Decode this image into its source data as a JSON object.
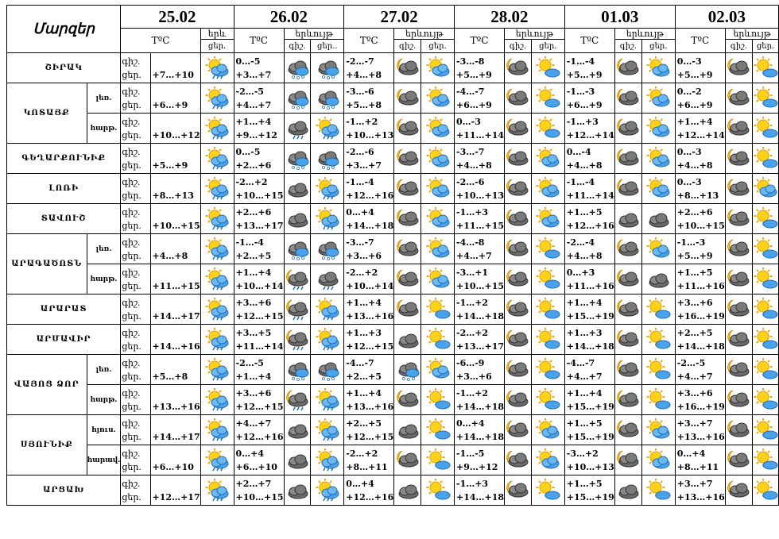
{
  "header": {
    "corner_label": "Մարզեր",
    "dates": [
      "25.02",
      "26.02",
      "27.02",
      "28.02",
      "01.03",
      "02.03"
    ],
    "temp_label": "TºC",
    "phen_label_full": "երևույթ",
    "phen_label_short": "երև",
    "night_label": "գիշ.",
    "day_label": "ցեր.",
    "day_label_trunc": "ցեր.."
  },
  "rows": [
    {
      "region": "ՇԻՐԱԿ",
      "sub": "",
      "night": "գիշ.",
      "day": "ցեր.",
      "d0": "+7…+10",
      "d1": "0…-5\n+3…+7",
      "d2": "-2…-7\n+4…+8",
      "d3": "-3…-8\n+5…+9",
      "d4": "-1…-4\n+5…+9",
      "d5": "0…-3\n+5…+9",
      "icons": [
        [
          "sunny_rain",
          "sunny_rain"
        ],
        [
          "cloud_snow",
          "cloud_snow"
        ],
        [
          "night_cloud",
          "sunny_cloud"
        ],
        [
          "night_cloud",
          "sunny"
        ],
        [
          "night_cloud",
          "sunny_cloud"
        ],
        [
          "night_cloud",
          "sunny"
        ]
      ]
    },
    {
      "region": "ԿՈՏԱՅՔ",
      "sub": "լեռ.",
      "night": "գիշ.",
      "day": "ցեր.",
      "d0": "+6…+9",
      "d1": "-2…-5\n+4…+7",
      "d2": "-3…-6\n+5…+8",
      "d3": "-4…-7\n+6…+9",
      "d4": "-1…-3\n+6…+9",
      "d5": "0…-2\n+6…+9",
      "icons": [
        [
          "sunny_rain",
          "sunny_rain"
        ],
        [
          "cloud_snow",
          "cloud_snow"
        ],
        [
          "night_cloud",
          "sunny_cloud"
        ],
        [
          "night_cloud",
          "sunny"
        ],
        [
          "night_cloud",
          "sunny_cloud"
        ],
        [
          "night_cloud",
          "sunny"
        ]
      ]
    },
    {
      "region": "",
      "sub": "հարթ.",
      "night": "գիշ.",
      "day": "ցեր.",
      "d0": "+10…+12",
      "d1": "+1…+4\n+9…+12",
      "d2": "-1…+2\n+10…+13",
      "d3": "0…-3\n+11…+14",
      "d4": "-1…+3\n+12…+14",
      "d5": "+1…+4\n+12…+14",
      "icons": [
        [
          "sunny_rain",
          "sunny_rain"
        ],
        [
          "cloud_rain",
          "sunny_rain"
        ],
        [
          "night_cloud",
          "sunny_cloud"
        ],
        [
          "night_cloud",
          "sunny"
        ],
        [
          "night_cloud",
          "sunny_cloud"
        ],
        [
          "night_cloud",
          "sunny"
        ]
      ]
    },
    {
      "region": "ԳԵՂԱՐՔՈՒՆԻՔ",
      "sub": "",
      "night": "գիշ.",
      "day": "ցեր.",
      "d0": "+5…+9",
      "d1": "0…-5\n+2…+6",
      "d2": "-2…-6\n+3…+7",
      "d3": "-3…-7\n+4…+8",
      "d4": "0…-4\n+4…+8",
      "d5": "0…-3\n+4…+8",
      "icons": [
        [
          "sunny_rain",
          "sunny_rain"
        ],
        [
          "cloud_snow",
          "cloud_snow"
        ],
        [
          "night_cloud",
          "sunny_cloud"
        ],
        [
          "night_cloud",
          "sunny_cloud"
        ],
        [
          "night_cloud",
          "sunny_cloud"
        ],
        [
          "night_cloud",
          "sunny"
        ]
      ]
    },
    {
      "region": "ԼՈՌԻ",
      "sub": "",
      "night": "գիշ.",
      "day": "ցեր.",
      "d0": "+8…+13",
      "d1": "-2…+2\n+10…+15",
      "d2": "-1…-4\n+12…+16",
      "d3": "-2…-6\n+10…+13",
      "d4": "-1…-4\n+11…+14",
      "d5": "0…-3\n+8…+13",
      "icons": [
        [
          "sunny_rain",
          "sunny_rain"
        ],
        [
          "cloud",
          "sunny_rain"
        ],
        [
          "night_cloud",
          "sunny_cloud"
        ],
        [
          "night_cloud",
          "sunny_cloud"
        ],
        [
          "night_cloud",
          "sunny_cloud"
        ],
        [
          "night_cloud",
          "sunny_cloud"
        ]
      ]
    },
    {
      "region": "ՏԱՎՈՒՇ",
      "sub": "",
      "night": "գիշ.",
      "day": "ցեր.",
      "d0": "+10…+15",
      "d1": "+2…+6\n+13…+17",
      "d2": "0…+4\n+14…+18",
      "d3": "-1…+3\n+11…+15",
      "d4": "+1…+5\n+12…+16",
      "d5": "+2…+6\n+10…+15",
      "icons": [
        [
          "sunny_rain",
          "sunny_rain"
        ],
        [
          "cloud",
          "sunny_rain"
        ],
        [
          "night_cloud",
          "sunny_cloud"
        ],
        [
          "night_cloud",
          "sunny_cloud"
        ],
        [
          "cloud",
          "cloud"
        ],
        [
          "night_cloud",
          "sunny"
        ]
      ]
    },
    {
      "region": "ԱՐԱԳԱԾՈՏՆ",
      "sub": "լեռ.",
      "night": "գիշ.",
      "day": "ցեր.",
      "d0": "+4…+8",
      "d1": "-1…-4\n+2…+5",
      "d2": "-3…-7\n+3…+6",
      "d3": "-4…-8\n+4…+7",
      "d4": "-2…-4\n+4…+8",
      "d5": "-1…-3\n+5…+9",
      "icons": [
        [
          "sunny_rain",
          "sunny_rain"
        ],
        [
          "cloud_snow",
          "cloud_snow"
        ],
        [
          "night_cloud",
          "sunny_cloud"
        ],
        [
          "night_cloud",
          "sunny"
        ],
        [
          "night_cloud",
          "sunny_cloud"
        ],
        [
          "night_cloud",
          "sunny"
        ]
      ]
    },
    {
      "region": "",
      "sub": "հարթ.",
      "night": "գիշ.",
      "day": "ցեր.",
      "d0": "+11…+15",
      "d1": "+1…+4\n+10…+14",
      "d2": "-2…+2\n+10…+14",
      "d3": "-3…+1\n+10…+15",
      "d4": "0…+3\n+11…+16",
      "d5": "+1…+5\n+11…+16",
      "icons": [
        [
          "sunny_rain",
          "sunny_rain"
        ],
        [
          "night_rain",
          "cloud_rain"
        ],
        [
          "night_cloud",
          "sunny_cloud"
        ],
        [
          "night_cloud",
          "sunny"
        ],
        [
          "night_cloud",
          "cloud"
        ],
        [
          "night_cloud",
          "sunny"
        ]
      ]
    },
    {
      "region": "ԱՐԱՐԱՏ",
      "sub": "",
      "night": "գիշ.",
      "day": "ցեր.",
      "d0": "+14…+17",
      "d1": "+3…+6\n+12…+15",
      "d2": "+1…+4\n+13…+16",
      "d3": "-1…+2\n+14…+18",
      "d4": "+1…+4\n+15…+19",
      "d5": "+3…+6\n+16…+19",
      "icons": [
        [
          "sunny_rain",
          "sunny_rain"
        ],
        [
          "night_rain",
          "sunny_rain"
        ],
        [
          "night_cloud",
          "sunny"
        ],
        [
          "night_cloud",
          "sunny"
        ],
        [
          "night_cloud",
          "sunny"
        ],
        [
          "night_cloud",
          "sunny"
        ]
      ]
    },
    {
      "region": "ԱՐՄԱՎԻՐ",
      "sub": "",
      "night": "գիշ.",
      "day": "ցեր.",
      "d0": "+14…+16",
      "d1": "+3…+5\n+11…+14",
      "d2": "+1…+3\n+12…+15",
      "d3": "-2…+2\n+13…+17",
      "d4": "+1…+3\n+14…+18",
      "d5": "+2…+5\n+14…+18",
      "icons": [
        [
          "sunny_rain",
          "sunny_rain"
        ],
        [
          "night_rain",
          "sunny_rain"
        ],
        [
          "cloud",
          "sunny"
        ],
        [
          "night_cloud",
          "sunny"
        ],
        [
          "night_cloud",
          "sunny"
        ],
        [
          "night_cloud",
          "sunny"
        ]
      ]
    },
    {
      "region": "ՎԱՅՈՑ ՁՈՐ",
      "sub": "լեռ.",
      "night": "գիշ.",
      "day": "ցեր.",
      "d0": "+5…+8",
      "d1": "-2…-5\n+1…+4",
      "d2": "-4…-7\n+2…+5",
      "d3": "-6…-9\n+3…+6",
      "d4": "-4…-7\n+4…+7",
      "d5": "-2…-5\n+4…+7",
      "icons": [
        [
          "sunny_rain",
          "sunny_rain"
        ],
        [
          "cloud_snow",
          "cloud_snow"
        ],
        [
          "cloud_snow",
          "sunny_cloud"
        ],
        [
          "night_cloud",
          "sunny"
        ],
        [
          "night_cloud",
          "sunny"
        ],
        [
          "night_cloud",
          "sunny"
        ]
      ]
    },
    {
      "region": "",
      "sub": "հարթ.",
      "night": "գիշ.",
      "day": "ցեր.",
      "d0": "+13…+16",
      "d1": "+3…+6\n+12…+15",
      "d2": "+1…+4\n+13…+16",
      "d3": "-1…+2\n+14…+18",
      "d4": "+1…+4\n+15…+19",
      "d5": "+3…+6\n+16…+19",
      "icons": [
        [
          "sunny_rain",
          "sunny_rain"
        ],
        [
          "night_rain",
          "sunny_rain"
        ],
        [
          "night_cloud",
          "sunny"
        ],
        [
          "night_cloud",
          "sunny"
        ],
        [
          "night_cloud",
          "sunny"
        ],
        [
          "night_cloud",
          "sunny"
        ]
      ]
    },
    {
      "region": "ՍՅՈՒՆԻՔ",
      "sub": "հյուս.",
      "night": "գիշ.",
      "day": "ցեր.",
      "d0": "+14…+17",
      "d1": "+4…+7\n+12…+16",
      "d2": "+2…+5\n+12…+15",
      "d3": "0…+4\n+14…+18",
      "d4": "+1…+5\n+15…+19",
      "d5": "+3…+7\n+13…+16",
      "icons": [
        [
          "sunny_rain",
          "sunny_rain"
        ],
        [
          "cloud",
          "sunny_rain"
        ],
        [
          "cloud",
          "sunny"
        ],
        [
          "night_cloud",
          "sunny_cloud"
        ],
        [
          "night_cloud",
          "sunny_cloud"
        ],
        [
          "night_cloud",
          "sunny"
        ]
      ]
    },
    {
      "region": "",
      "sub": "հարավ.",
      "night": "գիշ.",
      "day": "ցեր.",
      "d0": "+6…+10",
      "d1": "0…+4\n+6…+10",
      "d2": "-2…+2\n+8…+11",
      "d3": "-1…-5\n+9…+12",
      "d4": "-3…+2\n+10…+13",
      "d5": "0…+4\n+8…+11",
      "icons": [
        [
          "sunny_rain",
          "sunny_rain"
        ],
        [
          "cloud",
          "sunny_rain"
        ],
        [
          "night_cloud",
          "sunny"
        ],
        [
          "night_cloud",
          "sunny_cloud"
        ],
        [
          "night_cloud",
          "sunny_cloud"
        ],
        [
          "night_cloud",
          "sunny"
        ]
      ]
    },
    {
      "region": "ԱՐՑԱԽ",
      "sub": "",
      "night": "գիշ.",
      "day": "ցեր.",
      "d0": "+12…+17",
      "d1": "+2…+7\n+10…+15",
      "d2": "0…+4\n+12…+16",
      "d3": "-1…+3\n+14…+18",
      "d4": "+1…+5\n+15…+19",
      "d5": "+3…+7\n+13…+16",
      "icons": [
        [
          "sunny_rain",
          "sunny_rain"
        ],
        [
          "cloud",
          "sunny_rain"
        ],
        [
          "cloud",
          "sunny"
        ],
        [
          "night_cloud",
          "sunny"
        ],
        [
          "cloud",
          "sunny"
        ],
        [
          "night_cloud",
          "sunny"
        ]
      ]
    }
  ]
}
